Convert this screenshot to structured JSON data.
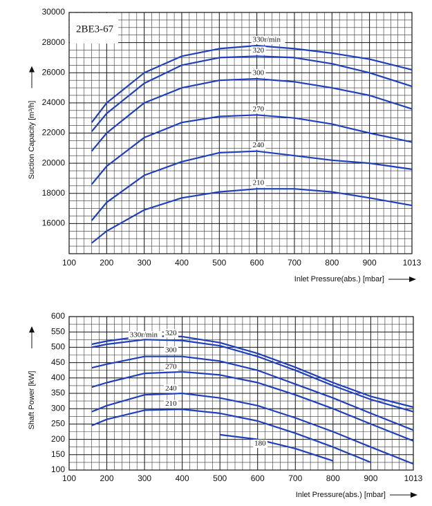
{
  "chart_data": [
    {
      "type": "line",
      "title": "2BE3-67",
      "y_label": "Suction Capacity [m³/h]",
      "x_label": "Inlet Pressure(abs.) [mbar]",
      "x": [
        160,
        200,
        300,
        400,
        500,
        600,
        700,
        800,
        900,
        1013
      ],
      "xlim": [
        100,
        1013
      ],
      "xticks": [
        100,
        200,
        300,
        400,
        500,
        600,
        700,
        800,
        900,
        1013
      ],
      "ylim": [
        14000,
        30000
      ],
      "yticks": [
        16000,
        18000,
        20000,
        22000,
        24000,
        26000,
        28000,
        30000
      ],
      "grid": true,
      "series": [
        {
          "name": "330r/min",
          "color": "#1f3fbf",
          "values": [
            22700,
            24000,
            26000,
            27100,
            27600,
            27800,
            27600,
            27300,
            26900,
            26200
          ]
        },
        {
          "name": "320",
          "color": "#1f3fbf",
          "values": [
            22100,
            23300,
            25300,
            26500,
            27000,
            27100,
            27000,
            26600,
            26000,
            25100
          ]
        },
        {
          "name": "300",
          "color": "#1f3fbf",
          "values": [
            20800,
            22000,
            24000,
            25000,
            25500,
            25600,
            25400,
            25000,
            24500,
            23600
          ]
        },
        {
          "name": "270",
          "color": "#1f3fbf",
          "values": [
            18600,
            19800,
            21700,
            22700,
            23100,
            23200,
            23000,
            22600,
            22000,
            21400
          ]
        },
        {
          "name": "240",
          "color": "#1f3fbf",
          "values": [
            16200,
            17400,
            19200,
            20100,
            20700,
            20800,
            20500,
            20200,
            20000,
            19600
          ]
        },
        {
          "name": "210",
          "color": "#1f3fbf",
          "values": [
            14700,
            15500,
            16900,
            17700,
            18100,
            18300,
            18300,
            18100,
            17700,
            17200
          ]
        }
      ]
    },
    {
      "type": "line",
      "y_label": "Shaft Power [kW]",
      "x_label": "Inlet Pressure(abs.) [mbar]",
      "x": [
        160,
        200,
        300,
        400,
        500,
        600,
        700,
        800,
        900,
        1013
      ],
      "xlim": [
        100,
        1013
      ],
      "xticks": [
        100,
        200,
        300,
        400,
        500,
        600,
        700,
        800,
        900,
        1013
      ],
      "ylim": [
        100,
        600
      ],
      "yticks": [
        100,
        150,
        200,
        250,
        300,
        350,
        400,
        450,
        500,
        550,
        600
      ],
      "grid": true,
      "series": [
        {
          "name": "330r/min",
          "color": "#1f3fbf",
          "values": [
            510,
            520,
            537,
            535,
            515,
            480,
            435,
            385,
            340,
            305
          ]
        },
        {
          "name": "320",
          "color": "#1f3fbf",
          "values": [
            500,
            510,
            525,
            522,
            505,
            470,
            425,
            375,
            330,
            290
          ]
        },
        {
          "name": "300",
          "color": "#1f3fbf",
          "values": [
            433,
            445,
            470,
            470,
            455,
            425,
            380,
            335,
            285,
            230
          ]
        },
        {
          "name": "270",
          "color": "#1f3fbf",
          "values": [
            370,
            385,
            415,
            420,
            410,
            385,
            345,
            300,
            250,
            195
          ]
        },
        {
          "name": "240",
          "color": "#1f3fbf",
          "values": [
            290,
            310,
            345,
            350,
            335,
            310,
            270,
            225,
            175,
            120
          ]
        },
        {
          "name": "210",
          "color": "#1f3fbf",
          "values": [
            245,
            265,
            295,
            298,
            285,
            260,
            220,
            175,
            125,
            null
          ]
        },
        {
          "name": "180",
          "color": "#1f3fbf",
          "values": [
            null,
            null,
            null,
            null,
            215,
            200,
            170,
            130,
            null,
            null
          ]
        }
      ]
    }
  ]
}
